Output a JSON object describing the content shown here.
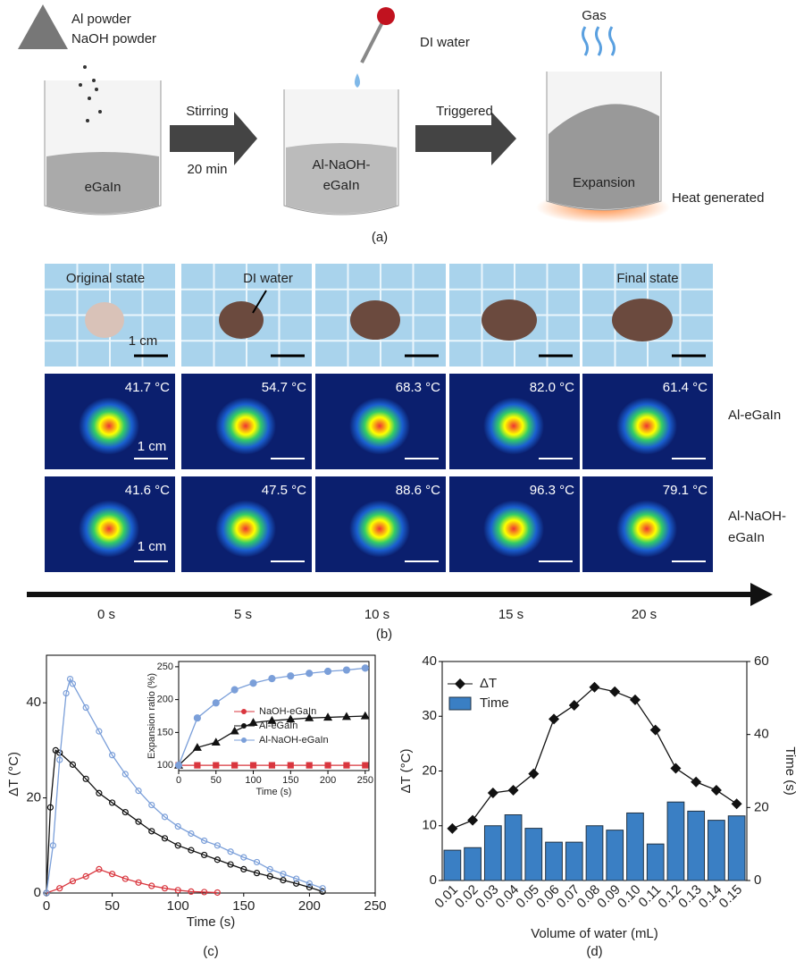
{
  "panel_a": {
    "powder": [
      "Al powder",
      "NaOH powder"
    ],
    "water": "DI water",
    "gas": "Gas",
    "egain": "eGaIn",
    "stir": [
      "Stirring",
      "20 min"
    ],
    "mix": [
      "Al-NaOH-",
      "eGaIn"
    ],
    "trigger": "Triggered",
    "expansion": "Expansion",
    "heat": "Heat generated",
    "caption": "(a)"
  },
  "panel_b": {
    "photo_labels": [
      "Original state",
      "DI water",
      "Final state"
    ],
    "scale": "1 cm",
    "rows": [
      {
        "name": [
          "Al-eGaIn"
        ],
        "temps": [
          "41.7 °C",
          "54.7 °C",
          "68.3 °C",
          "82.0 °C",
          "61.4 °C"
        ]
      },
      {
        "name": [
          "Al-NaOH-",
          "eGaIn"
        ],
        "temps": [
          "41.6 °C",
          "47.5 °C",
          "88.6 °C",
          "96.3 °C",
          "79.1 °C"
        ]
      }
    ],
    "times": [
      "0 s",
      "5 s",
      "10 s",
      "15 s",
      "20 s"
    ],
    "caption": "(b)"
  },
  "chart_data": [
    {
      "type": "line",
      "xlabel": "Time (s)",
      "ylabel": "ΔT (°C)",
      "caption": "(c)",
      "xlim": [
        0,
        250
      ],
      "ylim": [
        0,
        50
      ],
      "xticks": [
        0,
        50,
        100,
        150,
        200,
        250
      ],
      "yticks": [
        0,
        20,
        40
      ],
      "series": [
        {
          "name": "NaOH-eGaIn",
          "color": "#d9363e",
          "x": [
            0,
            10,
            20,
            30,
            40,
            50,
            60,
            70,
            80,
            90,
            100,
            110,
            120,
            130
          ],
          "values": [
            0,
            1,
            2.5,
            3.5,
            5,
            4,
            3,
            2.2,
            1.5,
            1,
            0.6,
            0.3,
            0.2,
            0.1
          ]
        },
        {
          "name": "Al-eGaIn",
          "color": "#111111",
          "x": [
            0,
            3,
            7,
            10,
            20,
            30,
            40,
            50,
            60,
            70,
            80,
            90,
            100,
            110,
            120,
            130,
            140,
            150,
            160,
            170,
            180,
            190,
            200,
            210
          ],
          "values": [
            0,
            18,
            30,
            29.5,
            27,
            24,
            21,
            19,
            17,
            15,
            13,
            11.5,
            10,
            9,
            8,
            7,
            6,
            5,
            4.2,
            3.5,
            2.7,
            2,
            1.2,
            0.3
          ]
        },
        {
          "name": "Al-NaOH-eGaIn",
          "color": "#7b9fd9",
          "x": [
            0,
            5,
            10,
            15,
            18,
            20,
            30,
            40,
            50,
            60,
            70,
            80,
            90,
            100,
            110,
            120,
            130,
            140,
            150,
            160,
            170,
            180,
            190,
            200,
            210
          ],
          "values": [
            0,
            10,
            28,
            42,
            45,
            44,
            39,
            34,
            29,
            25,
            21.5,
            18.5,
            16,
            14,
            12.5,
            11,
            10,
            8.7,
            7.5,
            6.5,
            5,
            4,
            3,
            2,
            1
          ]
        }
      ]
    },
    {
      "type": "line",
      "xlabel": "Time (s)",
      "ylabel": "Expansion ratio (%)",
      "xlim": [
        0,
        255
      ],
      "ylim": [
        92,
        258
      ],
      "xticks": [
        0,
        50,
        100,
        150,
        200,
        250
      ],
      "yticks": [
        100,
        150,
        200,
        250
      ],
      "series": [
        {
          "name": "NaOH-eGaIn",
          "color": "#d9363e",
          "x": [
            0,
            25,
            50,
            75,
            100,
            125,
            150,
            175,
            200,
            225,
            250
          ],
          "values": [
            100,
            100,
            100,
            100,
            100,
            100,
            100,
            100,
            100,
            100,
            100
          ]
        },
        {
          "name": "Al-eGaIn",
          "color": "#111111",
          "x": [
            0,
            25,
            50,
            75,
            100,
            125,
            150,
            175,
            200,
            225,
            250
          ],
          "values": [
            100,
            127,
            135,
            152,
            165,
            168,
            170,
            172,
            173,
            174,
            175
          ]
        },
        {
          "name": "Al-NaOH-eGaIn",
          "color": "#7b9fd9",
          "x": [
            0,
            25,
            50,
            75,
            100,
            125,
            150,
            175,
            200,
            225,
            250
          ],
          "values": [
            100,
            172,
            195,
            215,
            225,
            232,
            236,
            240,
            243,
            245,
            248
          ]
        }
      ]
    },
    {
      "type": "bar-line",
      "xlabel": "Volume of water (mL)",
      "ylabel": "ΔT (°C)",
      "y2label": "Time (s)",
      "caption": "(d)",
      "categories": [
        "0.01",
        "0.02",
        "0.03",
        "0.04",
        "0.05",
        "0.06",
        "0.07",
        "0.08",
        "0.09",
        "0.10",
        "0.11",
        "0.12",
        "0.13",
        "0.14",
        "0.15"
      ],
      "ylim": [
        0,
        40
      ],
      "yticks": [
        0,
        10,
        20,
        30,
        40
      ],
      "y2lim": [
        0,
        60
      ],
      "y2ticks": [
        0,
        20,
        40,
        60
      ],
      "series": [
        {
          "name": "ΔT",
          "color": "#111111",
          "values": [
            9.5,
            11,
            16,
            16.5,
            19.5,
            29.5,
            32,
            35.3,
            34.5,
            33,
            27.5,
            20.5,
            18,
            16.5,
            14
          ]
        },
        {
          "name": "Time",
          "color": "#3a7fc4",
          "axis": "y2",
          "values": [
            8.3,
            9,
            15,
            18,
            14.3,
            10.5,
            10.5,
            15,
            13.8,
            18.5,
            10,
            21.5,
            19,
            16.5,
            17.7
          ]
        }
      ]
    }
  ]
}
